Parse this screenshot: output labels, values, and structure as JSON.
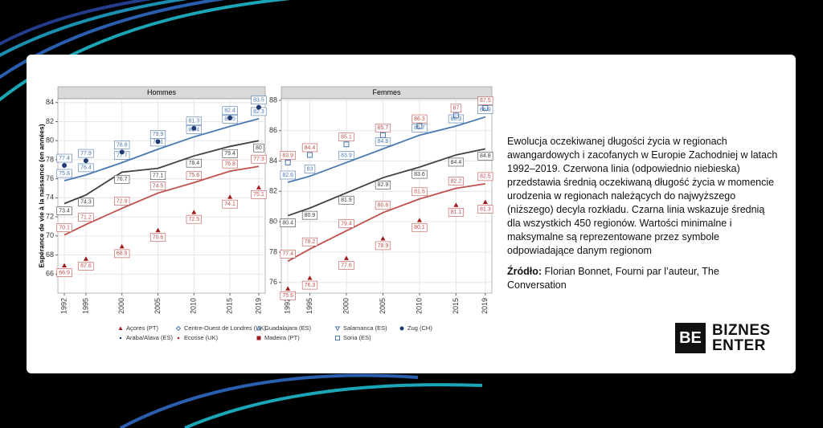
{
  "chart_data": [
    {
      "type": "line",
      "title": "Hommes",
      "ylabel": "Espérance de vie à la naissance (en années)",
      "x": [
        1992,
        1995,
        2000,
        2005,
        2010,
        2015,
        2019
      ],
      "xlim": [
        1991.1,
        2019.9
      ],
      "xticks": [
        1992,
        1995,
        2000,
        2005,
        2010,
        2015,
        2019
      ],
      "ylim": [
        64,
        84.4
      ],
      "yticks": [
        66,
        68,
        70,
        72,
        74,
        76,
        78,
        80,
        82,
        84
      ],
      "grid": true,
      "series": [
        {
          "color": "#c0504d",
          "values": [
            70.1,
            71.2,
            72.9,
            74.5,
            75.6,
            76.8,
            77.3
          ]
        },
        {
          "color": "#4a78b0",
          "values": [
            75.8,
            76.4,
            77.7,
            79.1,
            80.4,
            81.5,
            82.3
          ]
        },
        {
          "color": "#404040",
          "values": [
            73.4,
            74.3,
            76.7,
            77.1,
            78.4,
            79.4,
            80
          ]
        }
      ],
      "markers": [
        {
          "color": "#1f3b73",
          "symbol": "circle",
          "values": [
            77.4,
            77.9,
            78.8,
            79.9,
            81.3,
            82.4,
            83.5
          ]
        },
        {
          "color": "#a01c1c",
          "symbol": "triangle",
          "values": [
            66.9,
            67.6,
            68.9,
            70.6,
            72.5,
            74.1,
            75.1
          ]
        }
      ]
    },
    {
      "type": "line",
      "title": "Femmes",
      "x": [
        1992,
        1995,
        2000,
        2005,
        2010,
        2015,
        2019
      ],
      "xlim": [
        1991.1,
        2019.9
      ],
      "xticks": [
        1992,
        1995,
        2000,
        2005,
        2010,
        2015,
        2019
      ],
      "ylim": [
        75.3,
        88.1
      ],
      "yticks": [
        76,
        78,
        80,
        82,
        84,
        86,
        88
      ],
      "grid": true,
      "series": [
        {
          "color": "#c0504d",
          "values": [
            77.4,
            78.2,
            79.4,
            80.6,
            81.5,
            82.2,
            82.5
          ]
        },
        {
          "color": "#4a78b0",
          "values": [
            82.6,
            83.0,
            83.9,
            84.8,
            85.7,
            86.3,
            86.9
          ]
        },
        {
          "color": "#404040",
          "values": [
            80.4,
            80.9,
            81.9,
            82.9,
            83.6,
            84.4,
            84.8
          ]
        }
      ],
      "markers": [
        {
          "color": "#4a78b0",
          "symbol": "square-open",
          "values": [
            83.9,
            84.4,
            85.1,
            85.7,
            86.3,
            87.0,
            87.5
          ]
        },
        {
          "color": "#a01c1c",
          "symbol": "triangle",
          "values": [
            75.6,
            76.3,
            77.6,
            78.9,
            80.1,
            81.1,
            81.3
          ]
        }
      ]
    }
  ],
  "legend": [
    {
      "name": "Açores (PT)",
      "color": "#a01c1c",
      "symbol": "triangle"
    },
    {
      "name": "Centre-Ouest de Londres (UK)",
      "color": "#4a78b0",
      "symbol": "diamond-open"
    },
    {
      "name": "Guadalajara (ES)",
      "color": "#4a78b0",
      "symbol": "triangle-open"
    },
    {
      "name": "Salamanca (ES)",
      "color": "#4a78b0",
      "symbol": "triangle-down-open"
    },
    {
      "name": "Zug (CH)",
      "color": "#1f3b73",
      "symbol": "circle"
    },
    {
      "name": "Araba/Alava (ES)",
      "color": "#1f3b73",
      "symbol": "dot"
    },
    {
      "name": "Ecosse (UK)",
      "color": "#a01c1c",
      "symbol": "dot"
    },
    {
      "name": "Madeira (PT)",
      "color": "#a01c1c",
      "symbol": "square"
    },
    {
      "name": "Soria (ES)",
      "color": "#4a78b0",
      "symbol": "square-open"
    }
  ],
  "caption": "Ewolucja oczekiwanej długości życia w regionach awangardowych i zacofanych w Europie Zachodniej w latach 1992–2019. Czerwona linia (odpowiednio niebieska) przedstawia średnią oczekiwaną długość życia w momencie urodzenia w regionach należących do najwyższego (niższego) decyla rozkładu. Czarna linia wskazuje średnią dla wszystkich 450 regionów. Wartości minimalne i maksymalne są reprezentowane przez symbole odpowiadające danym regionom",
  "source_label": "Źródło:",
  "source": "Florian Bonnet, Fourni par l’auteur, The Conversation",
  "logo": {
    "mark": "BE",
    "line1": "BIZNES",
    "line2": "ENTER"
  }
}
